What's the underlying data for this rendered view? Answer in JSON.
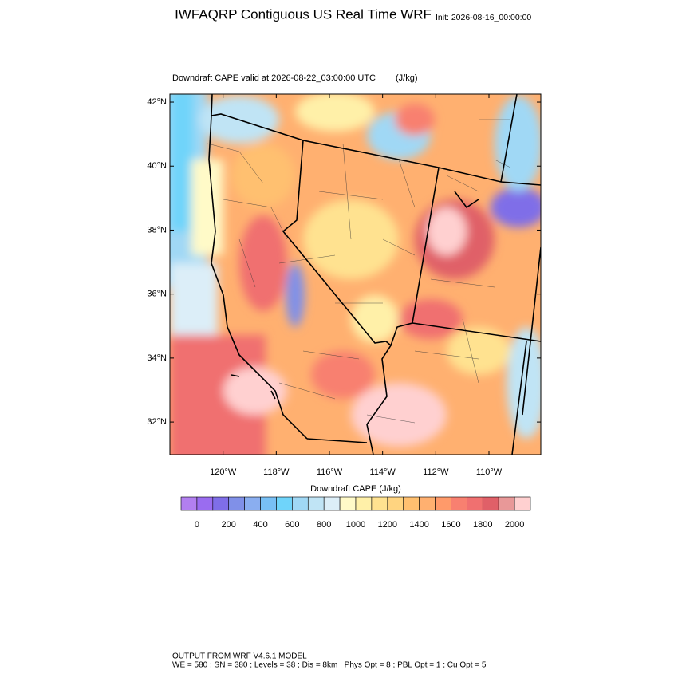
{
  "header": {
    "title": "IWFAQRP Contiguous US Real Time WRF",
    "init": "Init: 2026-08-16_00:00:00"
  },
  "map": {
    "subtitle": "Downdraft CAPE valid at 2026-08-22_03:00:00 UTC",
    "units": "(J/kg)",
    "lat_range": [
      30.98,
      42.25
    ],
    "lon_range": [
      -122.0,
      -108.05
    ],
    "lat_ticks": [
      {
        "value": 32,
        "label": "32°N"
      },
      {
        "value": 34,
        "label": "34°N"
      },
      {
        "value": 36,
        "label": "36°N"
      },
      {
        "value": 38,
        "label": "38°N"
      },
      {
        "value": 40,
        "label": "40°N"
      },
      {
        "value": 42,
        "label": "42°N"
      }
    ],
    "lon_ticks": [
      {
        "value": -120,
        "label": "120°W"
      },
      {
        "value": -118,
        "label": "118°W"
      },
      {
        "value": -116,
        "label": "116°W"
      },
      {
        "value": -114,
        "label": "114°W"
      },
      {
        "value": -112,
        "label": "112°W"
      },
      {
        "value": -110,
        "label": "110°W"
      }
    ]
  },
  "colorbar": {
    "label": "Downdraft CAPE  (J/kg)",
    "range": [
      -100,
      2100
    ],
    "ticks": [
      0,
      200,
      400,
      600,
      800,
      1000,
      1200,
      1400,
      1600,
      1800,
      2000
    ],
    "colors": [
      "#b27ff0",
      "#9a6cf0",
      "#7f6ee8",
      "#8090e8",
      "#8aaef0",
      "#78c0f5",
      "#6fd4fa",
      "#a0d8f5",
      "#c0e4f5",
      "#dceef8",
      "#fffac8",
      "#fff0a8",
      "#ffe290",
      "#ffd480",
      "#ffc070",
      "#ffb070",
      "#ff9a6a",
      "#f88070",
      "#f07070",
      "#e06068",
      "#e89898",
      "#ffd0d0"
    ]
  },
  "footer": {
    "line1": "OUTPUT FROM WRF V4.6.1 MODEL",
    "line2": "WE = 580 ; SN = 380 ; Levels = 38 ; Dis = 8km ; Phys Opt = 8 ; PBL Opt = 1 ; Cu Opt = 5"
  }
}
